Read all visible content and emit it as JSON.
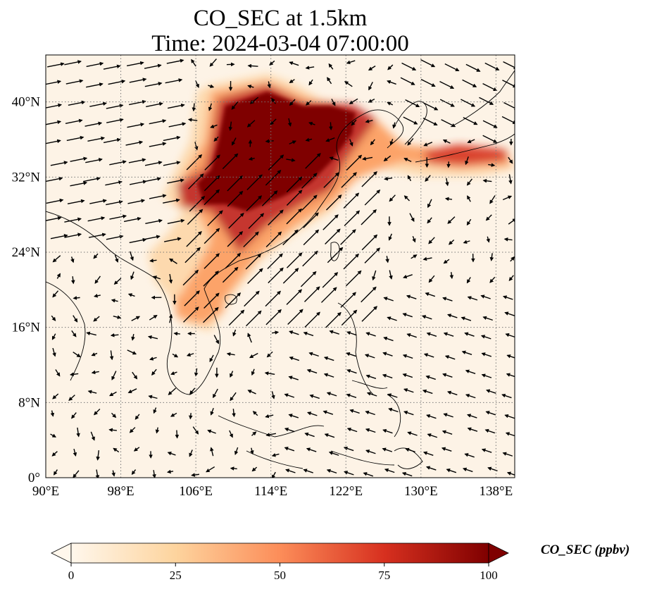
{
  "title_line1": "CO_SEC at 1.5km",
  "title_line2": "Time: 2024-03-04 07:00:00",
  "map": {
    "lon_range": [
      90,
      140
    ],
    "lat_range": [
      0,
      45
    ],
    "lon_ticks": [
      "90°E",
      "98°E",
      "106°E",
      "114°E",
      "122°E",
      "130°E",
      "138°E"
    ],
    "lat_ticks": [
      "0°",
      "8°N",
      "16°N",
      "24°N",
      "32°N",
      "40°N"
    ],
    "gridlines": "dotted",
    "vectors": "wind arrows"
  },
  "colorbar": {
    "label": "CO_SEC (ppbv)",
    "ticks": [
      "0",
      "25",
      "50",
      "75",
      "100"
    ],
    "range": [
      0,
      100
    ],
    "colormap": "OrRd",
    "colors": [
      "#fff7ec",
      "#fdd49e",
      "#fc8d59",
      "#d7301f",
      "#7f0000"
    ],
    "extend": "both"
  }
}
